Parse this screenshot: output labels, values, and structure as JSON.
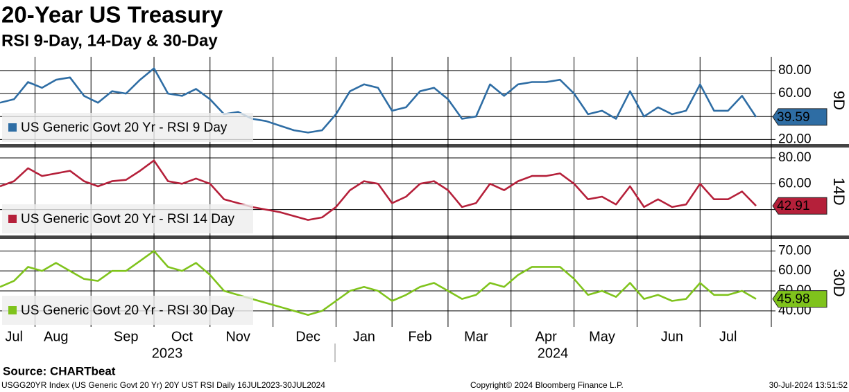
{
  "header": {
    "title": "20-Year US Treasury",
    "subtitle": "RSI 9-Day, 14-Day & 30-Day"
  },
  "chart_data": [
    {
      "type": "line",
      "panel_label": "9D",
      "ylim": [
        16,
        92
      ],
      "yticks": [
        {
          "value": 20,
          "label": "20.00"
        },
        {
          "value": 40,
          "label": "40.00"
        },
        {
          "value": 60,
          "label": "60.00"
        },
        {
          "value": 80,
          "label": "80.00"
        }
      ],
      "grid": true,
      "series": [
        {
          "name": "US Generic Govt 20 Yr - RSI 9 Day",
          "color": "#2e6da4",
          "values": [
            52,
            55,
            70,
            65,
            72,
            74,
            58,
            52,
            62,
            60,
            72,
            82,
            60,
            58,
            64,
            55,
            42,
            44,
            38,
            36,
            32,
            28,
            26,
            28,
            42,
            62,
            68,
            65,
            45,
            48,
            62,
            65,
            55,
            38,
            40,
            68,
            58,
            68,
            70,
            70,
            72,
            60,
            42,
            45,
            38,
            62,
            40,
            48,
            42,
            45,
            68,
            45,
            45,
            58,
            39.59
          ]
        }
      ]
    },
    {
      "type": "line",
      "panel_label": "14D",
      "ylim": [
        20,
        88
      ],
      "yticks": [
        {
          "value": 40,
          "label": "40.00"
        },
        {
          "value": 60,
          "label": "60.00"
        },
        {
          "value": 80,
          "label": "80.00"
        }
      ],
      "grid": true,
      "series": [
        {
          "name": "US Generic Govt 20 Yr - RSI 14 Day",
          "color": "#b5203a",
          "values": [
            58,
            62,
            72,
            66,
            68,
            70,
            62,
            58,
            62,
            63,
            70,
            78,
            62,
            60,
            64,
            60,
            48,
            45,
            42,
            40,
            38,
            35,
            32,
            34,
            42,
            55,
            62,
            60,
            45,
            50,
            60,
            62,
            55,
            42,
            45,
            60,
            55,
            62,
            66,
            66,
            68,
            60,
            48,
            50,
            44,
            58,
            42,
            48,
            42,
            44,
            60,
            48,
            48,
            54,
            42.91
          ]
        }
      ]
    },
    {
      "type": "line",
      "panel_label": "30D",
      "ylim": [
        32,
        76
      ],
      "yticks": [
        {
          "value": 40,
          "label": "40.00"
        },
        {
          "value": 50,
          "label": "50.00"
        },
        {
          "value": 60,
          "label": "60.00"
        },
        {
          "value": 70,
          "label": "70.00"
        }
      ],
      "grid": true,
      "categories": [
        null,
        "Jul",
        null,
        null,
        "Aug",
        null,
        null,
        null,
        null,
        "Sep",
        null,
        null,
        null,
        "Oct",
        null,
        null,
        null,
        "Nov",
        null,
        null,
        null,
        null,
        "Dec",
        null,
        null,
        null,
        "Jan",
        null,
        null,
        null,
        "Feb",
        null,
        null,
        null,
        "Mar",
        null,
        null,
        null,
        null,
        "Apr",
        null,
        null,
        null,
        "May",
        null,
        null,
        null,
        null,
        "Jun",
        null,
        null,
        null,
        "Jul",
        null,
        null
      ],
      "series": [
        {
          "name": "US Generic Govt 20 Yr - RSI 30 Day",
          "color": "#7fc31c",
          "values": [
            52,
            55,
            62,
            60,
            64,
            60,
            56,
            55,
            60,
            60,
            65,
            70,
            62,
            60,
            64,
            58,
            50,
            48,
            46,
            44,
            42,
            40,
            38,
            40,
            45,
            50,
            52,
            50,
            45,
            48,
            52,
            54,
            50,
            46,
            48,
            54,
            52,
            58,
            62,
            62,
            62,
            56,
            48,
            50,
            47,
            54,
            46,
            48,
            45,
            46,
            54,
            48,
            48,
            50,
            45.98
          ]
        }
      ]
    }
  ],
  "years": [
    "2023",
    "2024"
  ],
  "footer": {
    "source": "Source: CHARTbeat",
    "info": "USGG20YR Index (US Generic Govt 20 Yr) 20Y UST RSI  Daily 16JUL2023-30JUL2024",
    "copyright": "Copyright© 2024 Bloomberg Finance L.P.",
    "timestamp": "30-Jul-2024 13:51:52"
  }
}
